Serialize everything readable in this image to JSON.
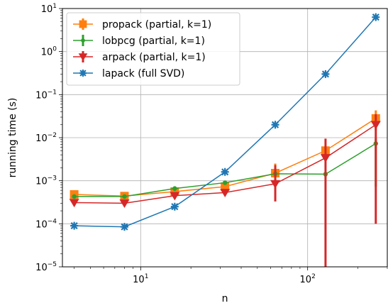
{
  "chart_data": {
    "type": "line",
    "xlabel": "n",
    "ylabel": "running time (s)",
    "xscale": "log",
    "yscale": "log",
    "xlim": [
      3.4,
      300
    ],
    "ylim": [
      1e-05,
      10
    ],
    "grid": true,
    "legend_position": "top-left",
    "x_ticks": [
      {
        "value": 10,
        "base": "10",
        "exp": "1"
      },
      {
        "value": 100,
        "base": "10",
        "exp": "2"
      }
    ],
    "y_ticks": [
      {
        "value": 1e-05,
        "base": "10",
        "exp": "−5"
      },
      {
        "value": 0.0001,
        "base": "10",
        "exp": "−4"
      },
      {
        "value": 0.001,
        "base": "10",
        "exp": "−3"
      },
      {
        "value": 0.01,
        "base": "10",
        "exp": "−2"
      },
      {
        "value": 0.1,
        "base": "10",
        "exp": "−1"
      },
      {
        "value": 1,
        "base": "10",
        "exp": "0"
      },
      {
        "value": 10,
        "base": "10",
        "exp": "1"
      }
    ],
    "series": [
      {
        "name": "propack (partial, k=1)",
        "color": "#ff7f0e",
        "marker": "square",
        "x": [
          4,
          8,
          16,
          32,
          64,
          128,
          256
        ],
        "y": [
          0.00048,
          0.00044,
          0.00056,
          0.00073,
          0.0015,
          0.005,
          0.028
        ],
        "err_low": [
          0.00043,
          0.0004,
          0.0005,
          0.00063,
          0.0009,
          0.003,
          0.015
        ],
        "err_high": [
          0.00054,
          0.00049,
          0.00063,
          0.00085,
          0.0025,
          0.0065,
          0.043
        ]
      },
      {
        "name": "lobpcg (partial, k=1)",
        "color": "#2ca02c",
        "marker": "circle",
        "x": [
          4,
          8,
          16,
          32,
          64,
          128,
          256
        ],
        "y": [
          0.00043,
          0.00043,
          0.00066,
          0.0009,
          0.00145,
          0.00142,
          0.0073
        ],
        "err_low": [
          0.0004,
          0.0004,
          0.00058,
          0.0008,
          0.0012,
          0.0012,
          0.00073
        ],
        "err_high": [
          0.00047,
          0.00047,
          0.00074,
          0.001,
          0.0019,
          0.0016,
          0.0095
        ]
      },
      {
        "name": "arpack (partial, k=1)",
        "color": "#d62728",
        "marker": "triangle-down",
        "x": [
          4,
          8,
          16,
          32,
          64,
          128,
          256
        ],
        "y": [
          0.00031,
          0.0003,
          0.00045,
          0.00053,
          0.00085,
          0.0034,
          0.02
        ],
        "err_low": [
          0.00027,
          0.00026,
          0.00038,
          0.00047,
          0.00033,
          1e-05,
          0.0001
        ],
        "err_high": [
          0.00036,
          0.00034,
          0.00053,
          0.0006,
          0.0023,
          0.0095,
          0.035
        ]
      },
      {
        "name": "lapack (full SVD)",
        "color": "#1f77b4",
        "marker": "x-star",
        "x": [
          4,
          8,
          16,
          32,
          64,
          128,
          256
        ],
        "y": [
          9e-05,
          8.5e-05,
          0.00025,
          0.0016,
          0.02,
          0.3,
          6.3
        ]
      }
    ]
  }
}
